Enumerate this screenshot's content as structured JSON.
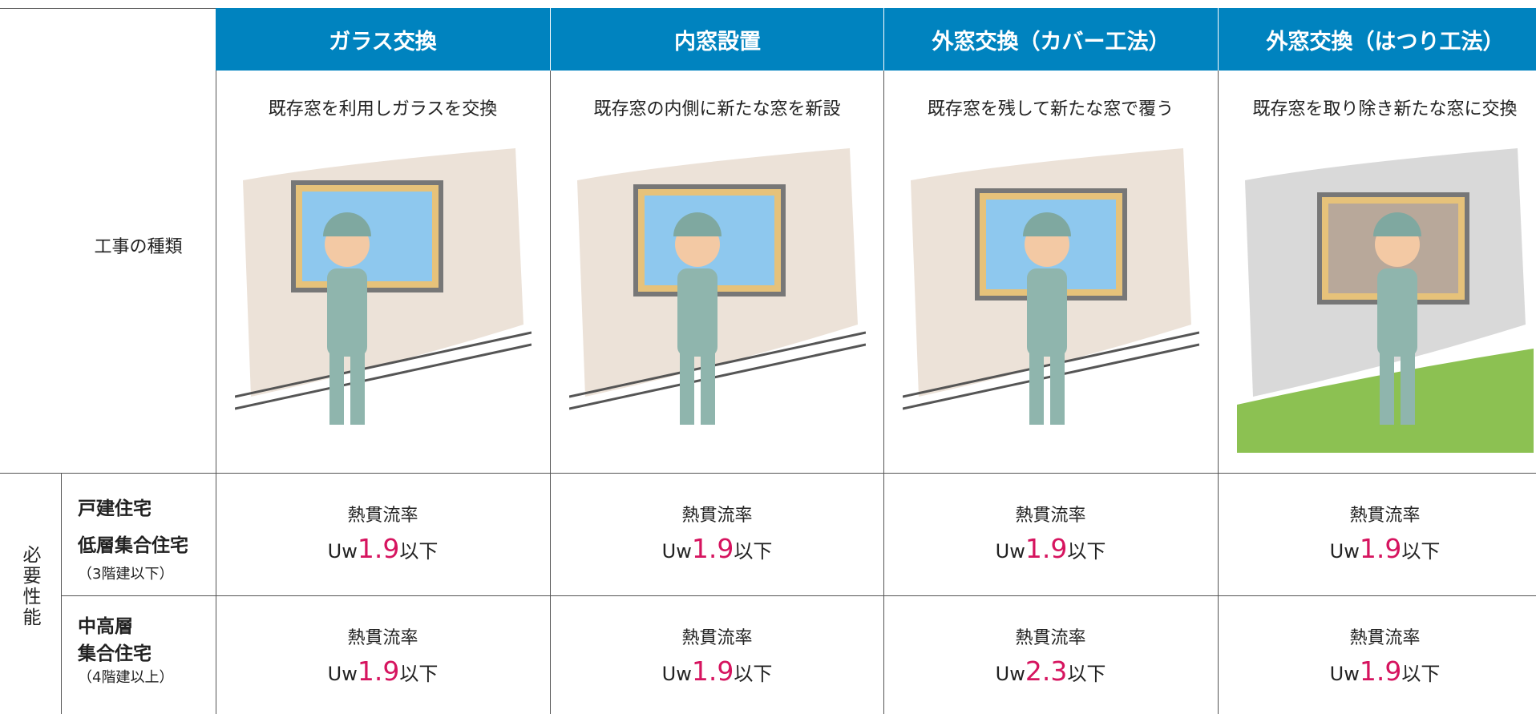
{
  "header": {
    "columns": [
      "ガラス交換",
      "内窓設置",
      "外窓交換（カバー工法）",
      "外窓交換（はつり工法）"
    ]
  },
  "type_row": {
    "label": "工事の種類",
    "descriptions": [
      "既存窓を利用しガラスを交換",
      "既存窓の内側に新たな窓を新設",
      "既存窓を残して新たな窓で覆う",
      "既存窓を取り除き新たな窓に交換"
    ]
  },
  "performance": {
    "label": "必要性能",
    "rows": [
      {
        "lines": [
          "戸建住宅",
          "低層集合住宅"
        ],
        "note": "（3階建以下）",
        "cells": [
          {
            "label": "熱貫流率",
            "prefix": "Uw",
            "value": 1.9,
            "suffix": "以下"
          },
          {
            "label": "熱貫流率",
            "prefix": "Uw",
            "value": 1.9,
            "suffix": "以下"
          },
          {
            "label": "熱貫流率",
            "prefix": "Uw",
            "value": 1.9,
            "suffix": "以下"
          },
          {
            "label": "熱貫流率",
            "prefix": "Uw",
            "value": 1.9,
            "suffix": "以下"
          }
        ]
      },
      {
        "lines": [
          "中高層",
          "集合住宅"
        ],
        "note": "（4階建以上）",
        "cells": [
          {
            "label": "熱貫流率",
            "prefix": "Uw",
            "value": 1.9,
            "suffix": "以下"
          },
          {
            "label": "熱貫流率",
            "prefix": "Uw",
            "value": 1.9,
            "suffix": "以下"
          },
          {
            "label": "熱貫流率",
            "prefix": "Uw",
            "value": 2.3,
            "suffix": "以下"
          },
          {
            "label": "熱貫流率",
            "prefix": "Uw",
            "value": 1.9,
            "suffix": "以下"
          }
        ]
      }
    ]
  }
}
